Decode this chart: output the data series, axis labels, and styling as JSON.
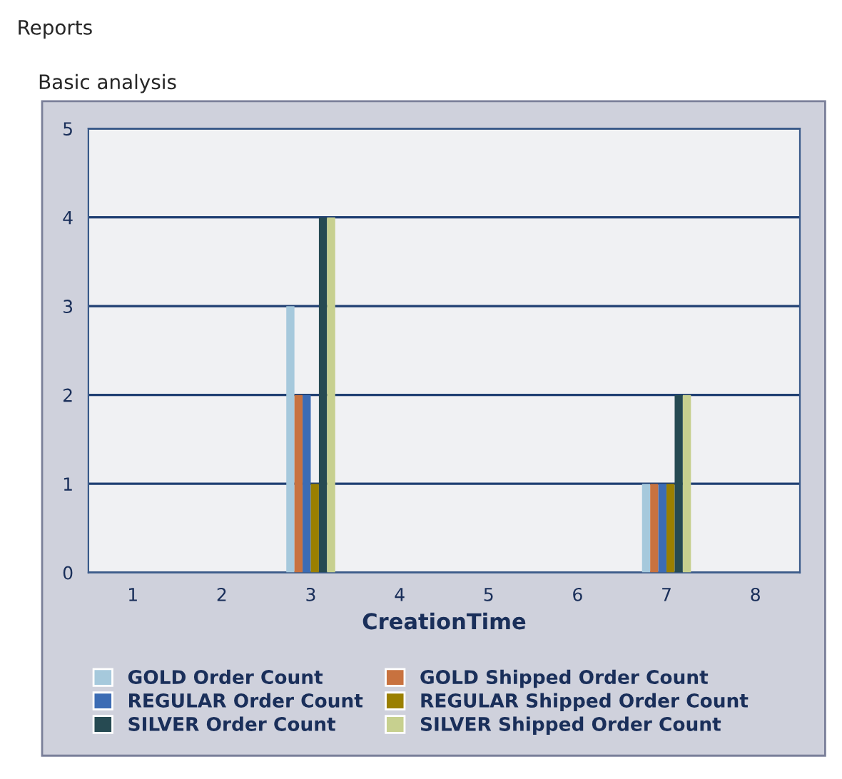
{
  "chart_data": {
    "type": "bar",
    "title": "Reports",
    "subtitle": "Basic analysis",
    "xlabel": "CreationTime",
    "categories": [
      "1",
      "2",
      "3",
      "4",
      "5",
      "6",
      "7",
      "8"
    ],
    "series": [
      {
        "name": "GOLD Order Count",
        "color": "#a6c9dc",
        "values": [
          0,
          0,
          3,
          0,
          0,
          0,
          1,
          0
        ]
      },
      {
        "name": "GOLD Shipped Order Count",
        "color": "#c8723f",
        "values": [
          0,
          0,
          2,
          0,
          0,
          0,
          1,
          0
        ]
      },
      {
        "name": "REGULAR Order Count",
        "color": "#3c6cb4",
        "values": [
          0,
          0,
          2,
          0,
          0,
          0,
          1,
          0
        ]
      },
      {
        "name": "REGULAR Shipped Order Count",
        "color": "#9a7f00",
        "values": [
          0,
          0,
          1,
          0,
          0,
          0,
          1,
          0
        ]
      },
      {
        "name": "SILVER Order Count",
        "color": "#264a52",
        "values": [
          0,
          0,
          4,
          0,
          0,
          0,
          2,
          0
        ]
      },
      {
        "name": "SILVER Shipped Order Count",
        "color": "#c7d08f",
        "values": [
          0,
          0,
          4,
          0,
          0,
          0,
          2,
          0
        ]
      }
    ],
    "ylim": [
      0,
      5
    ],
    "yticks": [
      0,
      1,
      2,
      3,
      4,
      5
    ],
    "grid": "y",
    "legend": "bottom"
  }
}
